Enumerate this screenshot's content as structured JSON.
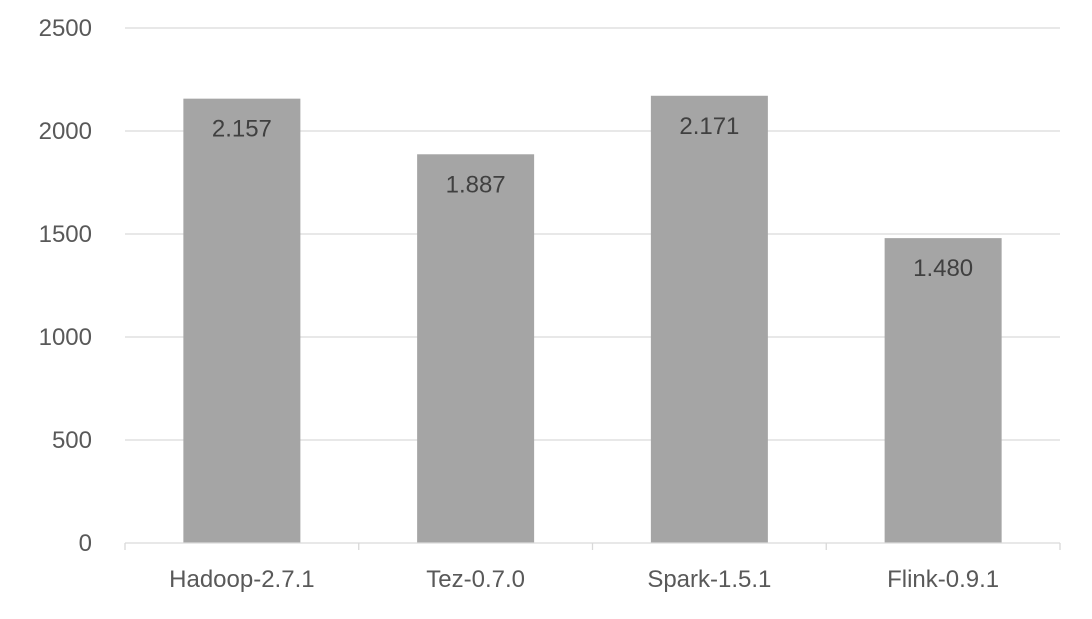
{
  "chart_data": {
    "type": "bar",
    "categories": [
      "Hadoop-2.7.1",
      "Tez-0.7.0",
      "Spark-1.5.1",
      "Flink-0.9.1"
    ],
    "values": [
      2157,
      1887,
      2171,
      1480
    ],
    "data_labels": [
      "2.157",
      "1.887",
      "2.171",
      "1.480"
    ],
    "yticks": [
      0,
      500,
      1000,
      1500,
      2000,
      2500
    ],
    "ylim": [
      0,
      2500
    ],
    "title": "",
    "xlabel": "",
    "ylabel": "",
    "grid": true,
    "legend": "none",
    "colors": {
      "bar": "#a5a5a5",
      "grid": "#d9d9d9",
      "tick_label": "#595959",
      "data_label": "#404040"
    }
  }
}
